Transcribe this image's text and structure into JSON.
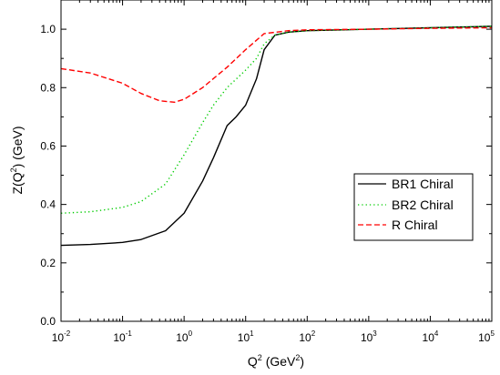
{
  "chart_data": {
    "type": "line",
    "title": "",
    "xlabel": {
      "base": "Q",
      "sup": "2",
      "rest": " (GeV",
      "sup2": "2",
      "close": ")"
    },
    "ylabel": {
      "base": "Z(Q",
      "sup": "2",
      "rest": ") (GeV)"
    },
    "xscale": "log",
    "xlim": [
      0.01,
      100000
    ],
    "ylim": [
      0.0,
      1.1
    ],
    "x_ticks": [
      {
        "base": "10",
        "exp": "-2"
      },
      {
        "base": "10",
        "exp": "-1"
      },
      {
        "base": "10",
        "exp": "0"
      },
      {
        "base": "10",
        "exp": "1"
      },
      {
        "base": "10",
        "exp": "2"
      },
      {
        "base": "10",
        "exp": "3"
      },
      {
        "base": "10",
        "exp": "4"
      },
      {
        "base": "10",
        "exp": "5"
      }
    ],
    "y_ticks": [
      "0.0",
      "0.2",
      "0.4",
      "0.6",
      "0.8",
      "1.0"
    ],
    "grid": false,
    "legend_position": "right",
    "series": [
      {
        "name": "BR1 Chiral",
        "color": "#000000",
        "style": "solid",
        "x": [
          0.01,
          0.03,
          0.1,
          0.2,
          0.5,
          1,
          2,
          3,
          5,
          7,
          10,
          15,
          20,
          30,
          50,
          100,
          1000,
          10000,
          100000
        ],
        "y": [
          0.26,
          0.263,
          0.27,
          0.28,
          0.31,
          0.37,
          0.48,
          0.56,
          0.67,
          0.7,
          0.74,
          0.83,
          0.93,
          0.98,
          0.99,
          0.995,
          1.0,
          1.005,
          1.01
        ]
      },
      {
        "name": "BR2 Chiral",
        "color": "#00cc00",
        "style": "dotted",
        "x": [
          0.01,
          0.03,
          0.1,
          0.2,
          0.5,
          1,
          2,
          3,
          5,
          10,
          15,
          20,
          30,
          50,
          100,
          1000,
          10000,
          100000
        ],
        "y": [
          0.37,
          0.375,
          0.39,
          0.41,
          0.47,
          0.57,
          0.68,
          0.74,
          0.8,
          0.86,
          0.9,
          0.95,
          0.98,
          0.99,
          0.995,
          1.0,
          1.005,
          1.01
        ]
      },
      {
        "name": "R Chiral",
        "color": "#ff0000",
        "style": "dashed",
        "x": [
          0.01,
          0.03,
          0.1,
          0.2,
          0.4,
          0.7,
          1,
          2,
          5,
          10,
          20,
          50,
          100,
          1000,
          10000,
          100000
        ],
        "y": [
          0.865,
          0.85,
          0.815,
          0.78,
          0.755,
          0.75,
          0.76,
          0.8,
          0.87,
          0.93,
          0.985,
          0.995,
          0.998,
          1.0,
          1.003,
          1.005
        ]
      }
    ]
  }
}
